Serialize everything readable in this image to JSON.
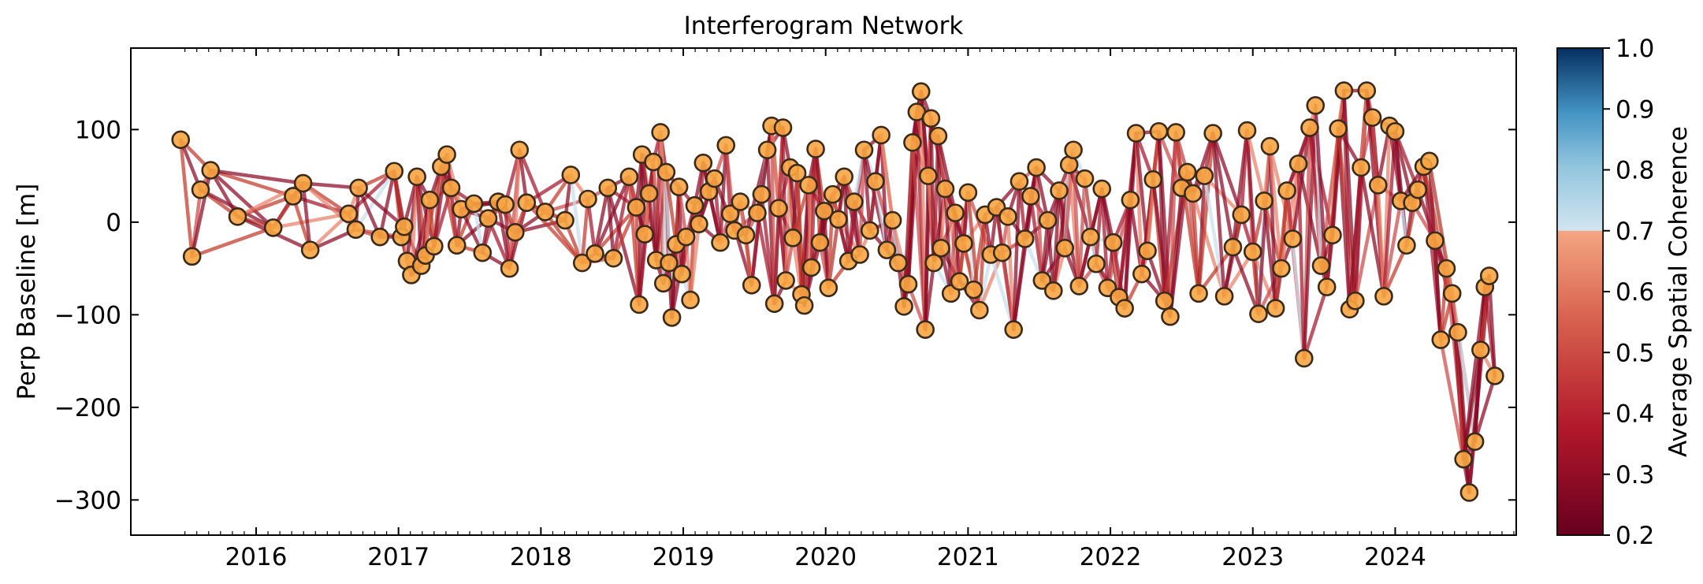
{
  "chart_data": {
    "type": "scatter",
    "title": "Interferogram Network",
    "xlabel": "",
    "ylabel": "Perp Baseline [m]",
    "xlim": [
      2015.12,
      2024.85
    ],
    "ylim": [
      -338,
      188
    ],
    "xticks": [
      2016,
      2017,
      2018,
      2019,
      2020,
      2021,
      2022,
      2023,
      2024
    ],
    "xtick_labels": [
      "2016",
      "2017",
      "2018",
      "2019",
      "2020",
      "2021",
      "2022",
      "2023",
      "2024"
    ],
    "yticks": [
      100,
      0,
      -100,
      -200,
      -300
    ],
    "ytick_labels": [
      "100",
      "0",
      "−100",
      "−200",
      "−300"
    ],
    "grid": false,
    "colorbar": {
      "label": "Average Spatial Coherence",
      "min": 0.2,
      "max": 1.0,
      "ticks": [
        "0.2",
        "0.3",
        "0.4",
        "0.5",
        "0.6",
        "0.7",
        "0.8",
        "0.9",
        "1.0"
      ],
      "colormap": "RdBu",
      "visible_threshold": 0.7
    },
    "colors": {
      "point_fill": "#f7a541",
      "point_edge": "#3b2a1a",
      "edge_low": "#8b0a26",
      "edge_mid": "#e8806a",
      "edge_high": "#c8dfee"
    },
    "acquisitions": [
      [
        2015.47,
        89
      ],
      [
        2015.55,
        -37
      ],
      [
        2015.61,
        35
      ],
      [
        2015.68,
        56
      ],
      [
        2015.87,
        6
      ],
      [
        2016.12,
        -6
      ],
      [
        2016.26,
        28
      ],
      [
        2016.33,
        42
      ],
      [
        2016.38,
        -30
      ],
      [
        2016.65,
        9
      ],
      [
        2016.7,
        -8
      ],
      [
        2016.72,
        37
      ],
      [
        2016.87,
        -16
      ],
      [
        2016.97,
        55
      ],
      [
        2017.02,
        -16
      ],
      [
        2017.04,
        -5
      ],
      [
        2017.06,
        -42
      ],
      [
        2017.09,
        -57
      ],
      [
        2017.13,
        49
      ],
      [
        2017.16,
        -47
      ],
      [
        2017.19,
        -36
      ],
      [
        2017.22,
        24
      ],
      [
        2017.25,
        -26
      ],
      [
        2017.3,
        60
      ],
      [
        2017.34,
        73
      ],
      [
        2017.37,
        37
      ],
      [
        2017.41,
        -25
      ],
      [
        2017.44,
        14
      ],
      [
        2017.53,
        20
      ],
      [
        2017.59,
        -33
      ],
      [
        2017.63,
        4
      ],
      [
        2017.7,
        22
      ],
      [
        2017.75,
        19
      ],
      [
        2017.78,
        -50
      ],
      [
        2017.82,
        -11
      ],
      [
        2017.85,
        78
      ],
      [
        2017.9,
        21
      ],
      [
        2018.03,
        11
      ],
      [
        2018.17,
        2
      ],
      [
        2018.21,
        51
      ],
      [
        2018.29,
        -44
      ],
      [
        2018.33,
        25
      ],
      [
        2018.38,
        -34
      ],
      [
        2018.47,
        37
      ],
      [
        2018.51,
        -39
      ],
      [
        2018.62,
        49
      ],
      [
        2018.67,
        16
      ],
      [
        2018.69,
        -89
      ],
      [
        2018.71,
        73
      ],
      [
        2018.73,
        -13
      ],
      [
        2018.76,
        31
      ],
      [
        2018.79,
        65
      ],
      [
        2018.81,
        -41
      ],
      [
        2018.84,
        97
      ],
      [
        2018.86,
        -66
      ],
      [
        2018.88,
        54
      ],
      [
        2018.9,
        -44
      ],
      [
        2018.92,
        -103
      ],
      [
        2018.95,
        -24
      ],
      [
        2018.97,
        38
      ],
      [
        2018.99,
        -56
      ],
      [
        2019.02,
        -16
      ],
      [
        2019.05,
        -84
      ],
      [
        2019.08,
        18
      ],
      [
        2019.11,
        -2
      ],
      [
        2019.14,
        64
      ],
      [
        2019.18,
        33
      ],
      [
        2019.22,
        47
      ],
      [
        2019.26,
        -22
      ],
      [
        2019.3,
        83
      ],
      [
        2019.33,
        9
      ],
      [
        2019.36,
        -9
      ],
      [
        2019.4,
        22
      ],
      [
        2019.44,
        -14
      ],
      [
        2019.48,
        -68
      ],
      [
        2019.52,
        10
      ],
      [
        2019.55,
        30
      ],
      [
        2019.59,
        78
      ],
      [
        2019.62,
        104
      ],
      [
        2019.64,
        -88
      ],
      [
        2019.67,
        15
      ],
      [
        2019.7,
        102
      ],
      [
        2019.72,
        -63
      ],
      [
        2019.75,
        59
      ],
      [
        2019.77,
        -17
      ],
      [
        2019.8,
        53
      ],
      [
        2019.83,
        -78
      ],
      [
        2019.85,
        -90
      ],
      [
        2019.88,
        40
      ],
      [
        2019.9,
        -49
      ],
      [
        2019.93,
        79
      ],
      [
        2019.96,
        -22
      ],
      [
        2019.99,
        12
      ],
      [
        2020.02,
        -71
      ],
      [
        2020.05,
        30
      ],
      [
        2020.09,
        3
      ],
      [
        2020.13,
        49
      ],
      [
        2020.16,
        -42
      ],
      [
        2020.2,
        22
      ],
      [
        2020.24,
        -35
      ],
      [
        2020.27,
        78
      ],
      [
        2020.31,
        -9
      ],
      [
        2020.35,
        44
      ],
      [
        2020.39,
        94
      ],
      [
        2020.43,
        -30
      ],
      [
        2020.47,
        2
      ],
      [
        2020.51,
        -44
      ],
      [
        2020.55,
        -91
      ],
      [
        2020.58,
        -67
      ],
      [
        2020.61,
        86
      ],
      [
        2020.64,
        119
      ],
      [
        2020.67,
        141
      ],
      [
        2020.7,
        -116
      ],
      [
        2020.72,
        50
      ],
      [
        2020.74,
        112
      ],
      [
        2020.76,
        -44
      ],
      [
        2020.79,
        93
      ],
      [
        2020.81,
        -28
      ],
      [
        2020.84,
        36
      ],
      [
        2020.88,
        -77
      ],
      [
        2020.91,
        10
      ],
      [
        2020.94,
        -64
      ],
      [
        2020.97,
        -23
      ],
      [
        2021.0,
        32
      ],
      [
        2021.04,
        -73
      ],
      [
        2021.08,
        -95
      ],
      [
        2021.12,
        8
      ],
      [
        2021.16,
        -35
      ],
      [
        2021.2,
        16
      ],
      [
        2021.24,
        -33
      ],
      [
        2021.28,
        6
      ],
      [
        2021.32,
        -116
      ],
      [
        2021.36,
        44
      ],
      [
        2021.4,
        -18
      ],
      [
        2021.44,
        28
      ],
      [
        2021.48,
        59
      ],
      [
        2021.52,
        -63
      ],
      [
        2021.56,
        2
      ],
      [
        2021.6,
        -74
      ],
      [
        2021.64,
        34
      ],
      [
        2021.68,
        -28
      ],
      [
        2021.71,
        62
      ],
      [
        2021.74,
        78
      ],
      [
        2021.78,
        -69
      ],
      [
        2021.82,
        47
      ],
      [
        2021.86,
        -16
      ],
      [
        2021.9,
        -45
      ],
      [
        2021.94,
        36
      ],
      [
        2021.98,
        -71
      ],
      [
        2022.02,
        -22
      ],
      [
        2022.06,
        -81
      ],
      [
        2022.1,
        -93
      ],
      [
        2022.14,
        24
      ],
      [
        2022.18,
        96
      ],
      [
        2022.22,
        -56
      ],
      [
        2022.26,
        -31
      ],
      [
        2022.3,
        46
      ],
      [
        2022.34,
        98
      ],
      [
        2022.38,
        -85
      ],
      [
        2022.42,
        -102
      ],
      [
        2022.46,
        97
      ],
      [
        2022.5,
        37
      ],
      [
        2022.54,
        54
      ],
      [
        2022.58,
        31
      ],
      [
        2022.62,
        -77
      ],
      [
        2022.66,
        50
      ],
      [
        2022.72,
        96
      ],
      [
        2022.8,
        -80
      ],
      [
        2022.86,
        -27
      ],
      [
        2022.92,
        8
      ],
      [
        2022.96,
        99
      ],
      [
        2023.0,
        -32
      ],
      [
        2023.04,
        -99
      ],
      [
        2023.08,
        23
      ],
      [
        2023.12,
        82
      ],
      [
        2023.16,
        -93
      ],
      [
        2023.2,
        -50
      ],
      [
        2023.24,
        34
      ],
      [
        2023.28,
        -18
      ],
      [
        2023.32,
        63
      ],
      [
        2023.36,
        -147
      ],
      [
        2023.4,
        102
      ],
      [
        2023.44,
        126
      ],
      [
        2023.48,
        -47
      ],
      [
        2023.52,
        -70
      ],
      [
        2023.56,
        -14
      ],
      [
        2023.6,
        101
      ],
      [
        2023.64,
        142
      ],
      [
        2023.68,
        -94
      ],
      [
        2023.72,
        -85
      ],
      [
        2023.76,
        59
      ],
      [
        2023.8,
        142
      ],
      [
        2023.84,
        113
      ],
      [
        2023.88,
        40
      ],
      [
        2023.92,
        -80
      ],
      [
        2023.96,
        104
      ],
      [
        2024.0,
        98
      ],
      [
        2024.04,
        23
      ],
      [
        2024.08,
        -25
      ],
      [
        2024.12,
        21
      ],
      [
        2024.16,
        35
      ],
      [
        2024.2,
        60
      ],
      [
        2024.24,
        66
      ],
      [
        2024.28,
        -20
      ],
      [
        2024.32,
        -127
      ],
      [
        2024.36,
        -50
      ],
      [
        2024.4,
        -77
      ],
      [
        2024.44,
        -119
      ],
      [
        2024.48,
        -256
      ],
      [
        2024.52,
        -292
      ],
      [
        2024.56,
        -237
      ],
      [
        2024.6,
        -138
      ],
      [
        2024.63,
        -70
      ],
      [
        2024.66,
        -58
      ],
      [
        2024.7,
        -166
      ]
    ]
  }
}
